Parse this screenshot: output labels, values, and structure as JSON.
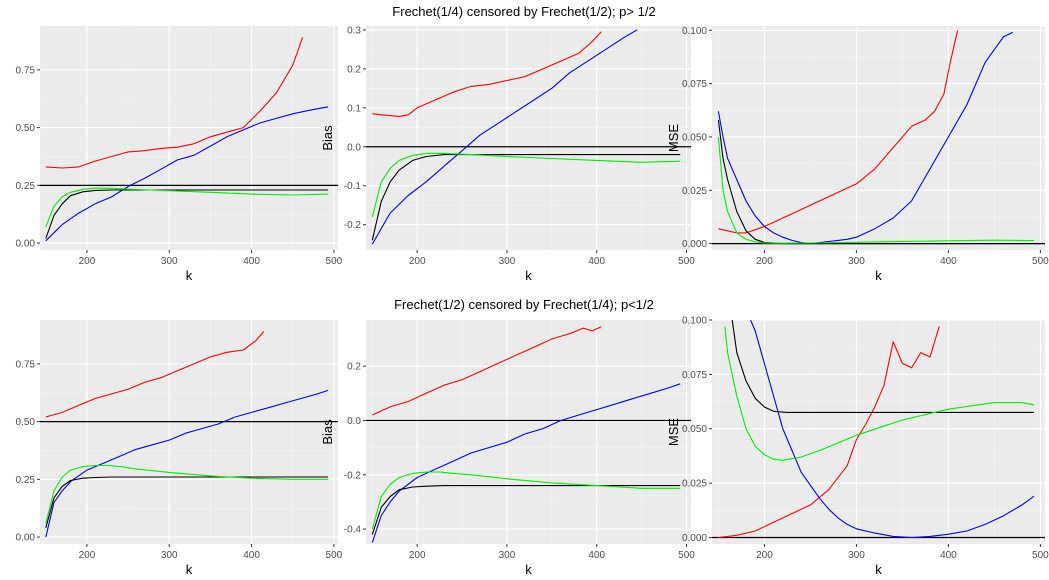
{
  "figure": {
    "row_titles": [
      "Frechet(1/4) censored by Frechet(1/2); p> 1/2",
      "Frechet(1/2) censored by Frechet(1/4); p<1/2"
    ]
  },
  "chart_data": [
    {
      "type": "line",
      "title": "Frechet(1/4) censored by Frechet(1/2); p> 1/2",
      "xlabel": "k",
      "ylabel": "",
      "xlim": [
        143,
        505
      ],
      "ylim": [
        -0.03,
        0.94
      ],
      "xticks": [
        200,
        300,
        400,
        500
      ],
      "yticks": [
        0.0,
        0.25,
        0.5,
        0.75
      ],
      "ytick_labels": [
        "0.00",
        "0.25",
        "0.50",
        "0.75"
      ],
      "grid": true,
      "hline": 0.25,
      "series": [
        {
          "color": "#ff0000",
          "x": [
            150,
            170,
            190,
            210,
            230,
            250,
            270,
            290,
            310,
            330,
            350,
            370,
            390,
            410,
            430,
            450,
            462
          ],
          "values": [
            0.33,
            0.325,
            0.33,
            0.355,
            0.375,
            0.395,
            0.4,
            0.41,
            0.415,
            0.43,
            0.46,
            0.48,
            0.5,
            0.57,
            0.65,
            0.77,
            0.89
          ]
        },
        {
          "color": "#0000ff",
          "x": [
            150,
            170,
            190,
            210,
            230,
            250,
            270,
            290,
            310,
            330,
            350,
            370,
            390,
            410,
            430,
            450,
            470,
            493
          ],
          "values": [
            0.01,
            0.08,
            0.13,
            0.17,
            0.2,
            0.245,
            0.28,
            0.32,
            0.36,
            0.38,
            0.42,
            0.46,
            0.49,
            0.52,
            0.54,
            0.56,
            0.575,
            0.59
          ]
        },
        {
          "color": "#000000",
          "x": [
            150,
            160,
            170,
            180,
            195,
            210,
            230,
            260,
            300,
            350,
            400,
            450,
            493
          ],
          "values": [
            0.02,
            0.12,
            0.17,
            0.205,
            0.222,
            0.228,
            0.23,
            0.23,
            0.23,
            0.23,
            0.23,
            0.23,
            0.23
          ]
        },
        {
          "color": "#00ee00",
          "x": [
            150,
            160,
            170,
            180,
            195,
            210,
            230,
            260,
            300,
            350,
            400,
            450,
            493
          ],
          "values": [
            0.07,
            0.16,
            0.2,
            0.22,
            0.233,
            0.238,
            0.237,
            0.232,
            0.227,
            0.22,
            0.212,
            0.208,
            0.212
          ]
        }
      ]
    },
    {
      "type": "line",
      "title": "",
      "xlabel": "k",
      "ylabel": "Bias",
      "xlim": [
        143,
        505
      ],
      "ylim": [
        -0.265,
        0.31
      ],
      "xticks": [
        200,
        300,
        400,
        500
      ],
      "yticks": [
        -0.2,
        -0.1,
        0.0,
        0.1,
        0.2,
        0.3
      ],
      "ytick_labels": [
        "-0.2",
        "-0.1",
        "0.0",
        "0.1",
        "0.2",
        "0.3"
      ],
      "grid": true,
      "hline": 0.0,
      "series": [
        {
          "color": "#ff0000",
          "x": [
            150,
            160,
            170,
            180,
            190,
            200,
            220,
            240,
            260,
            280,
            300,
            320,
            340,
            360,
            380,
            395,
            405
          ],
          "values": [
            0.085,
            0.082,
            0.08,
            0.078,
            0.082,
            0.1,
            0.12,
            0.14,
            0.155,
            0.16,
            0.17,
            0.18,
            0.2,
            0.22,
            0.24,
            0.27,
            0.295
          ]
        },
        {
          "color": "#0000ff",
          "x": [
            150,
            170,
            190,
            210,
            230,
            250,
            270,
            290,
            310,
            330,
            350,
            370,
            390,
            410,
            430,
            445
          ],
          "values": [
            -0.25,
            -0.17,
            -0.125,
            -0.09,
            -0.05,
            -0.01,
            0.03,
            0.06,
            0.09,
            0.12,
            0.15,
            0.19,
            0.22,
            0.25,
            0.28,
            0.3
          ]
        },
        {
          "color": "#000000",
          "x": [
            150,
            160,
            170,
            180,
            195,
            210,
            230,
            260,
            300,
            350,
            400,
            450,
            493
          ],
          "values": [
            -0.24,
            -0.14,
            -0.09,
            -0.06,
            -0.035,
            -0.025,
            -0.02,
            -0.02,
            -0.02,
            -0.02,
            -0.02,
            -0.02,
            -0.02
          ]
        },
        {
          "color": "#00ee00",
          "x": [
            150,
            160,
            170,
            180,
            195,
            210,
            230,
            260,
            300,
            350,
            400,
            450,
            493
          ],
          "values": [
            -0.18,
            -0.09,
            -0.055,
            -0.035,
            -0.022,
            -0.017,
            -0.017,
            -0.02,
            -0.025,
            -0.03,
            -0.035,
            -0.04,
            -0.037
          ]
        }
      ]
    },
    {
      "type": "line",
      "title": "",
      "xlabel": "k",
      "ylabel": "MSE",
      "xlim": [
        143,
        505
      ],
      "ylim": [
        -0.003,
        0.102
      ],
      "xticks": [
        200,
        300,
        400,
        500
      ],
      "yticks": [
        0.0,
        0.025,
        0.05,
        0.075,
        0.1
      ],
      "ytick_labels": [
        "0.000",
        "0.025",
        "0.050",
        "0.075",
        "0.100"
      ],
      "grid": true,
      "hline": 0.0,
      "series": [
        {
          "color": "#ff0000",
          "x": [
            150,
            160,
            170,
            180,
            200,
            220,
            240,
            260,
            280,
            300,
            320,
            340,
            360,
            375,
            385,
            395,
            402,
            410
          ],
          "values": [
            0.007,
            0.006,
            0.005,
            0.005,
            0.008,
            0.012,
            0.016,
            0.02,
            0.024,
            0.028,
            0.035,
            0.045,
            0.055,
            0.058,
            0.062,
            0.07,
            0.085,
            0.1
          ]
        },
        {
          "color": "#0000ff",
          "x": [
            150,
            155,
            160,
            170,
            180,
            190,
            200,
            210,
            220,
            230,
            240,
            250,
            260,
            270,
            280,
            290,
            300,
            320,
            340,
            360,
            380,
            400,
            420,
            440,
            460,
            470
          ],
          "values": [
            0.062,
            0.05,
            0.04,
            0.03,
            0.02,
            0.013,
            0.008,
            0.005,
            0.003,
            0.0015,
            0.0005,
            0.0,
            0.0005,
            0.001,
            0.0015,
            0.002,
            0.003,
            0.007,
            0.012,
            0.02,
            0.035,
            0.05,
            0.065,
            0.085,
            0.097,
            0.099
          ]
        },
        {
          "color": "#000000",
          "x": [
            150,
            155,
            160,
            170,
            180,
            190,
            200,
            220,
            250,
            300,
            400,
            500
          ],
          "values": [
            0.058,
            0.04,
            0.03,
            0.015,
            0.006,
            0.002,
            0.0005,
            0.0,
            0.0,
            0.0,
            0.0,
            0.0
          ]
        },
        {
          "color": "#00ee00",
          "x": [
            150,
            155,
            160,
            170,
            180,
            190,
            200,
            220,
            250,
            300,
            350,
            400,
            450,
            493
          ],
          "values": [
            0.05,
            0.025,
            0.015,
            0.005,
            0.002,
            0.0008,
            0.0003,
            0.0002,
            0.0003,
            0.0006,
            0.001,
            0.0013,
            0.0016,
            0.0014
          ]
        }
      ]
    },
    {
      "type": "line",
      "title": "Frechet(1/2) censored by Frechet(1/4); p<1/2",
      "xlabel": "k",
      "ylabel": "",
      "xlim": [
        143,
        505
      ],
      "ylim": [
        -0.03,
        0.94
      ],
      "xticks": [
        200,
        300,
        400,
        500
      ],
      "yticks": [
        0.0,
        0.25,
        0.5,
        0.75
      ],
      "ytick_labels": [
        "0.00",
        "0.25",
        "0.50",
        "0.75"
      ],
      "grid": true,
      "hline": 0.5,
      "series": [
        {
          "color": "#ff0000",
          "x": [
            150,
            170,
            190,
            210,
            230,
            250,
            270,
            290,
            310,
            330,
            350,
            370,
            390,
            405,
            415
          ],
          "values": [
            0.52,
            0.54,
            0.57,
            0.6,
            0.62,
            0.64,
            0.67,
            0.69,
            0.72,
            0.75,
            0.78,
            0.8,
            0.81,
            0.85,
            0.89
          ]
        },
        {
          "color": "#0000ff",
          "x": [
            150,
            160,
            170,
            180,
            200,
            220,
            240,
            260,
            280,
            300,
            320,
            340,
            360,
            380,
            400,
            420,
            440,
            460,
            480,
            493
          ],
          "values": [
            0.0,
            0.15,
            0.2,
            0.24,
            0.29,
            0.32,
            0.35,
            0.38,
            0.4,
            0.42,
            0.45,
            0.47,
            0.49,
            0.52,
            0.54,
            0.56,
            0.58,
            0.6,
            0.62,
            0.635
          ]
        },
        {
          "color": "#000000",
          "x": [
            150,
            160,
            170,
            180,
            195,
            210,
            230,
            260,
            300,
            350,
            400,
            450,
            493
          ],
          "values": [
            0.04,
            0.17,
            0.22,
            0.245,
            0.255,
            0.258,
            0.26,
            0.26,
            0.26,
            0.26,
            0.26,
            0.26,
            0.26
          ]
        },
        {
          "color": "#00ee00",
          "x": [
            150,
            160,
            170,
            180,
            195,
            210,
            225,
            240,
            260,
            300,
            350,
            400,
            450,
            493
          ],
          "values": [
            0.06,
            0.2,
            0.26,
            0.29,
            0.305,
            0.31,
            0.31,
            0.305,
            0.295,
            0.28,
            0.265,
            0.255,
            0.25,
            0.25
          ]
        }
      ]
    },
    {
      "type": "line",
      "title": "",
      "xlabel": "k",
      "ylabel": "Bias",
      "xlim": [
        143,
        505
      ],
      "ylim": [
        -0.455,
        0.37
      ],
      "xticks": [
        200,
        300,
        400,
        500
      ],
      "yticks": [
        -0.4,
        -0.2,
        0.0,
        0.2
      ],
      "ytick_labels": [
        "-0.4",
        "-0.2",
        "0.0",
        "0.2"
      ],
      "grid": true,
      "hline": 0.0,
      "series": [
        {
          "color": "#ff0000",
          "x": [
            150,
            170,
            190,
            210,
            230,
            250,
            270,
            290,
            310,
            330,
            350,
            370,
            385,
            395,
            405
          ],
          "values": [
            0.02,
            0.05,
            0.07,
            0.1,
            0.13,
            0.15,
            0.18,
            0.21,
            0.24,
            0.27,
            0.3,
            0.32,
            0.34,
            0.33,
            0.345
          ]
        },
        {
          "color": "#0000ff",
          "x": [
            150,
            160,
            170,
            180,
            200,
            220,
            240,
            260,
            280,
            300,
            320,
            340,
            360,
            380,
            400,
            420,
            440,
            460,
            480,
            493
          ],
          "values": [
            -0.45,
            -0.35,
            -0.3,
            -0.26,
            -0.21,
            -0.18,
            -0.15,
            -0.12,
            -0.1,
            -0.08,
            -0.05,
            -0.03,
            0.0,
            0.02,
            0.04,
            0.06,
            0.08,
            0.1,
            0.12,
            0.135
          ]
        },
        {
          "color": "#000000",
          "x": [
            150,
            160,
            170,
            180,
            195,
            210,
            230,
            260,
            300,
            350,
            400,
            450,
            493
          ],
          "values": [
            -0.42,
            -0.32,
            -0.28,
            -0.255,
            -0.245,
            -0.242,
            -0.24,
            -0.24,
            -0.24,
            -0.24,
            -0.24,
            -0.24,
            -0.24
          ]
        },
        {
          "color": "#00ee00",
          "x": [
            150,
            160,
            170,
            180,
            195,
            210,
            225,
            240,
            260,
            300,
            350,
            400,
            450,
            493
          ],
          "values": [
            -0.4,
            -0.28,
            -0.235,
            -0.21,
            -0.195,
            -0.19,
            -0.19,
            -0.195,
            -0.2,
            -0.215,
            -0.23,
            -0.24,
            -0.25,
            -0.25
          ]
        }
      ]
    },
    {
      "type": "line",
      "title": "",
      "xlabel": "k",
      "ylabel": "MSE",
      "xlim": [
        143,
        505
      ],
      "ylim": [
        -0.003,
        0.1
      ],
      "xticks": [
        200,
        300,
        400,
        500
      ],
      "yticks": [
        0.0,
        0.025,
        0.05,
        0.075,
        0.1
      ],
      "ytick_labels": [
        "0.000",
        "0.025",
        "0.050",
        "0.075",
        "0.100"
      ],
      "grid": true,
      "hline": 0.0,
      "series": [
        {
          "color": "#ff0000",
          "x": [
            150,
            170,
            190,
            210,
            230,
            250,
            270,
            290,
            300,
            310,
            320,
            330,
            340,
            350,
            360,
            370,
            380,
            390
          ],
          "values": [
            0.0,
            0.001,
            0.003,
            0.007,
            0.011,
            0.015,
            0.022,
            0.033,
            0.045,
            0.052,
            0.06,
            0.07,
            0.09,
            0.08,
            0.078,
            0.085,
            0.083,
            0.097
          ]
        },
        {
          "color": "#0000ff",
          "x": [
            185,
            190,
            200,
            210,
            220,
            230,
            240,
            250,
            260,
            270,
            280,
            290,
            300,
            320,
            340,
            360,
            380,
            400,
            420,
            440,
            460,
            480,
            493
          ],
          "values": [
            0.1,
            0.095,
            0.08,
            0.065,
            0.05,
            0.04,
            0.03,
            0.024,
            0.018,
            0.013,
            0.009,
            0.006,
            0.004,
            0.002,
            0.0005,
            0.0,
            0.0005,
            0.0015,
            0.003,
            0.006,
            0.01,
            0.015,
            0.019
          ]
        },
        {
          "color": "#000000",
          "x": [
            165,
            170,
            180,
            190,
            200,
            210,
            225,
            250,
            300,
            350,
            400,
            450,
            493
          ],
          "values": [
            0.1,
            0.085,
            0.072,
            0.064,
            0.06,
            0.058,
            0.0575,
            0.0575,
            0.0575,
            0.0575,
            0.0575,
            0.0575,
            0.0575
          ]
        },
        {
          "color": "#00ee00",
          "x": [
            157,
            160,
            170,
            180,
            190,
            200,
            210,
            220,
            240,
            260,
            300,
            350,
            400,
            450,
            480,
            493
          ],
          "values": [
            0.097,
            0.085,
            0.065,
            0.05,
            0.042,
            0.038,
            0.036,
            0.0355,
            0.037,
            0.04,
            0.047,
            0.054,
            0.059,
            0.062,
            0.062,
            0.061
          ]
        }
      ]
    }
  ]
}
